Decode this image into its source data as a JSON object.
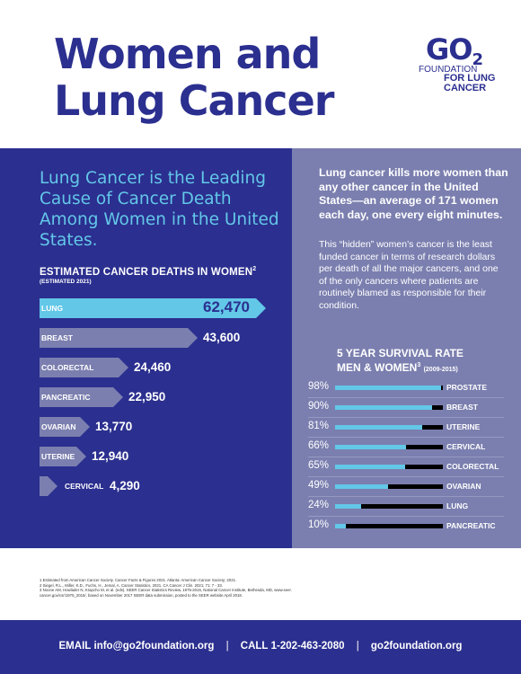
{
  "title_lines": [
    "Women and",
    "Lung Cancer"
  ],
  "logo": {
    "mark": "GO",
    "mark_sub": "2",
    "line1": "FOUNDATION",
    "line2": "FOR LUNG",
    "line3": "CANCER"
  },
  "left": {
    "headline": "Lung Cancer is the Leading Cause of Cancer Death Among Women in the United States.",
    "deaths_title": "ESTIMATED CANCER DEATHS IN WOMEN",
    "deaths_title_sup": "2",
    "deaths_subtitle": "(ESTIMATED 2021)"
  },
  "right": {
    "headline": "Lung cancer kills more women than any other cancer in the United States—an average of 171 women each day, one every eight minutes.",
    "body": "This “hidden” women’s cancer is the least funded cancer in terms of research dollars per death of all the major cancers, and one of the only cancers where patients are routinely blamed as responsible for their condition.",
    "survival_title_l1": "5 YEAR SURVIVAL RATE",
    "survival_title_l2": "MEN & WOMEN",
    "survival_title_sup": "3",
    "survival_title_years": "(2009-2015)"
  },
  "chart_data": [
    {
      "type": "bar",
      "title": "ESTIMATED CANCER DEATHS IN WOMEN",
      "subtitle": "(ESTIMATED 2021)",
      "categories": [
        "LUNG",
        "BREAST",
        "COLORECTAL",
        "PANCREATIC",
        "OVARIAN",
        "UTERINE",
        "CERVICAL"
      ],
      "values": [
        62470,
        43600,
        24460,
        22950,
        13770,
        12940,
        4290
      ],
      "value_labels": [
        "62,470",
        "43,600",
        "24,460",
        "22,950",
        "13,770",
        "12,940",
        "4,290"
      ],
      "colors": [
        "#63c7e8",
        "#7b7faf",
        "#7b7faf",
        "#7b7faf",
        "#7b7faf",
        "#7b7faf",
        "#7b7faf"
      ]
    },
    {
      "type": "bar",
      "title": "5 YEAR SURVIVAL RATE MEN & WOMEN",
      "subtitle": "(2009-2015)",
      "categories": [
        "PROSTATE",
        "BREAST",
        "UTERINE",
        "CERVICAL",
        "COLORECTAL",
        "OVARIAN",
        "LUNG",
        "PANCREATIC"
      ],
      "values": [
        98,
        90,
        81,
        66,
        65,
        49,
        24,
        10
      ],
      "value_labels": [
        "98%",
        "90%",
        "81%",
        "66%",
        "65%",
        "49%",
        "24%",
        "10%"
      ],
      "ylim": [
        0,
        100
      ],
      "colors": {
        "fill": "#63c7e8",
        "track": "#000000"
      }
    }
  ],
  "footnotes": [
    "1   Estimated from American Cancer Society. Cancer Facts & Figures 2021. Atlanta: American Cancer Society; 2021.",
    "2   Siegel, R.L., Miller, K.D., Fuchs, H., Jemal, A. Cancer Statistics, 2021. CA Cancer J Clin. 2021; 71: 7 - 33.",
    "3   Noone AM, Howlader N, Krapcho M, et al. (eds). SEER Cancer Statistics Review, 1975-2015, National Cancer Institute, Bethesda, MD, www.seer.",
    "     cancer.gov/csr/1975_2015/, based on November 2017 SEER data submission, posted to the SEER website April 2018."
  ],
  "footer": {
    "email_label": "EMAIL",
    "email": "info@go2foundation.org",
    "call_label": "CALL",
    "phone": "1-202-463-2080",
    "site": "go2foundation.org",
    "separator": "|"
  },
  "colors": {
    "navy": "#2b2f8f",
    "accent": "#63c7e8",
    "slate": "#7b7faf"
  }
}
